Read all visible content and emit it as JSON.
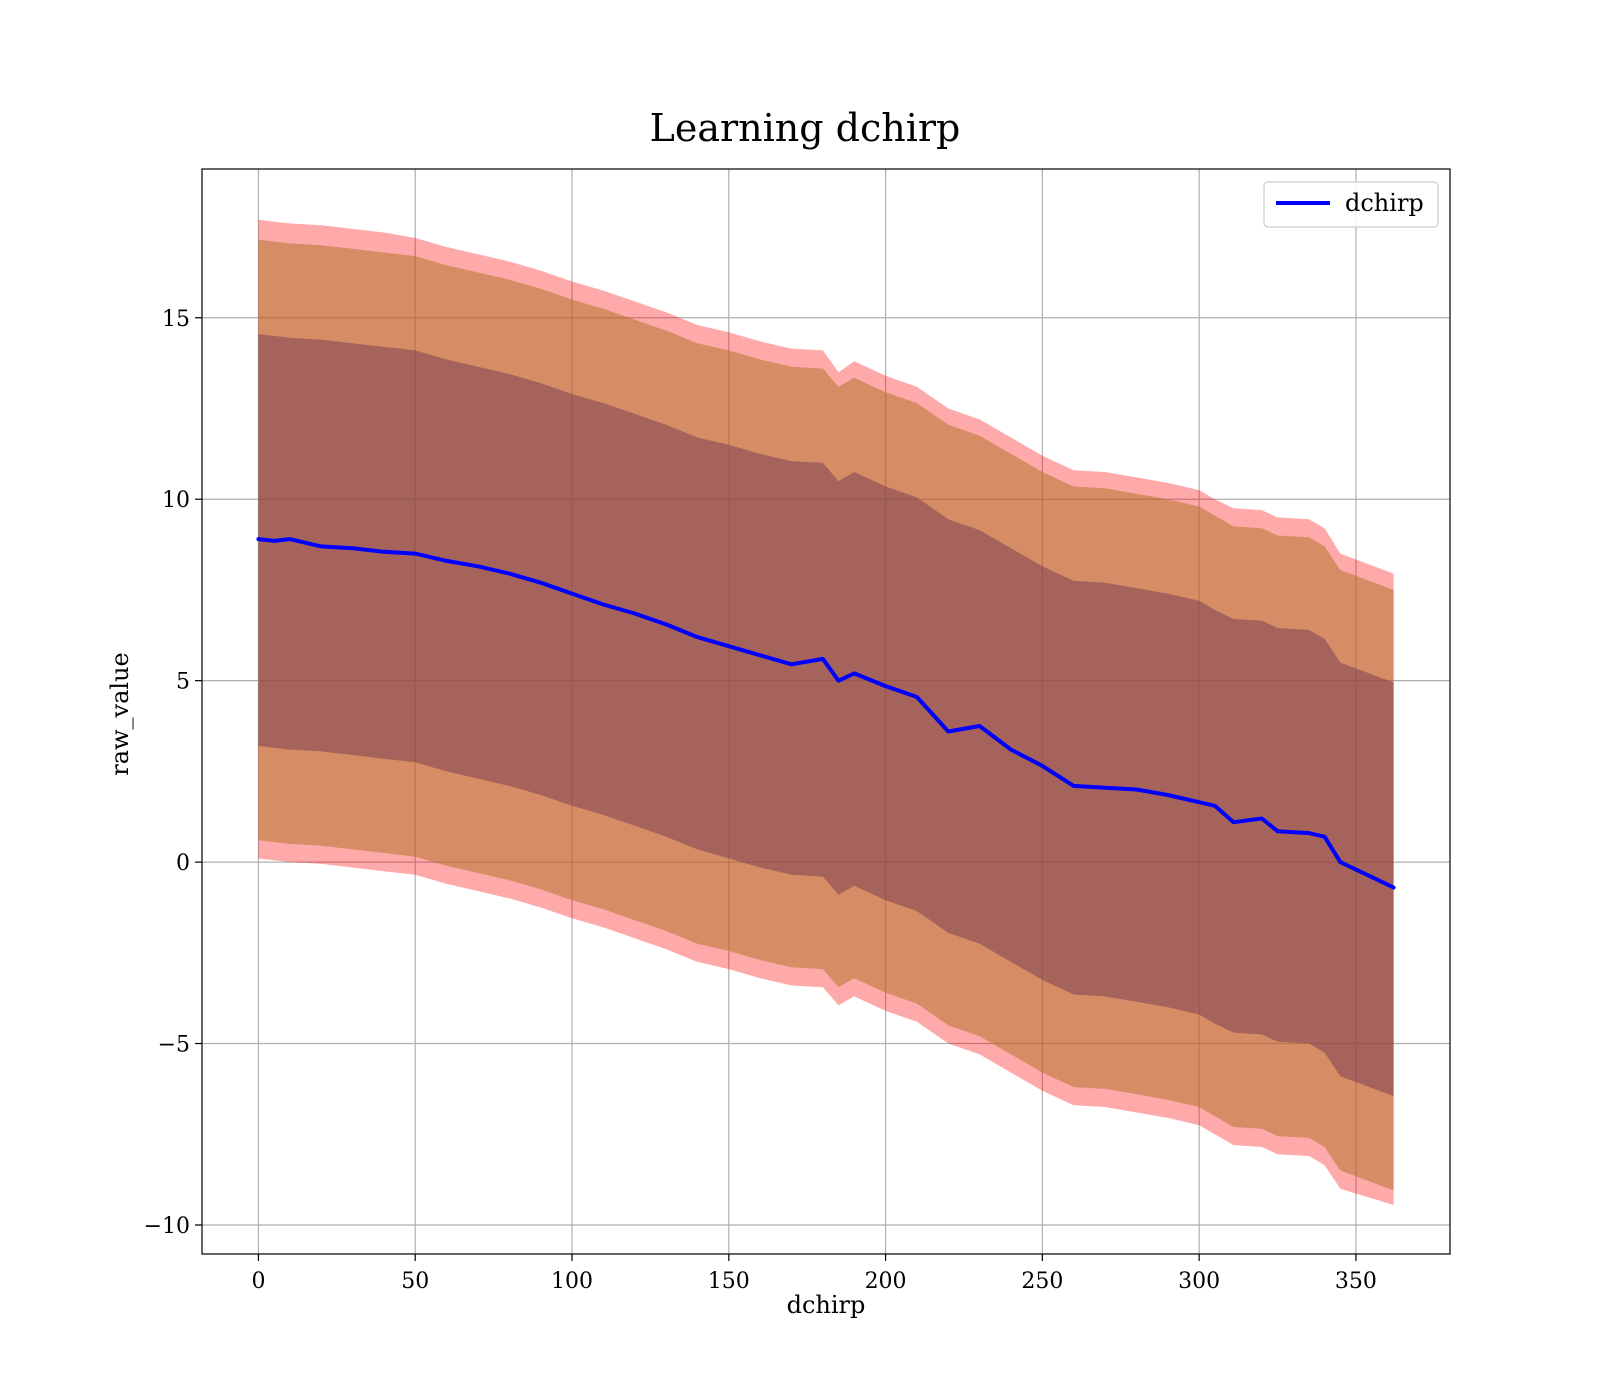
{
  "chart_data": {
    "type": "line",
    "title": "Learning dchirp",
    "xlabel": "dchirp",
    "ylabel": "raw_value",
    "xlim": [
      -18,
      380
    ],
    "ylim": [
      -10.8,
      19.1
    ],
    "xticks": [
      0,
      50,
      100,
      150,
      200,
      250,
      300,
      350
    ],
    "yticks": [
      -10,
      -5,
      0,
      5,
      10,
      15
    ],
    "xtick_labels": [
      "0",
      "50",
      "100",
      "150",
      "200",
      "250",
      "300",
      "350"
    ],
    "ytick_labels": [
      "−10",
      "−5",
      "0",
      "5",
      "10",
      "15"
    ],
    "grid": true,
    "legend_position": "top-right",
    "colors": {
      "line": "#0000ff",
      "outer_band": "#ff000055",
      "middle_band": "#b2742a88",
      "inner_band": "#7a3d5588"
    },
    "x": [
      0,
      5,
      10,
      20,
      30,
      40,
      50,
      60,
      70,
      80,
      90,
      100,
      110,
      120,
      130,
      140,
      150,
      160,
      170,
      180,
      185,
      190,
      200,
      210,
      220,
      230,
      240,
      250,
      260,
      270,
      280,
      290,
      300,
      305,
      311,
      320,
      325,
      335,
      340,
      345,
      362
    ],
    "series": [
      {
        "name": "dchirp",
        "values": [
          8.9,
          8.85,
          8.9,
          8.7,
          8.65,
          8.55,
          8.5,
          8.3,
          8.15,
          7.95,
          7.7,
          7.4,
          7.1,
          6.85,
          6.55,
          6.2,
          5.95,
          5.7,
          5.45,
          5.6,
          5.0,
          5.2,
          4.85,
          4.55,
          3.6,
          3.75,
          3.1,
          2.65,
          2.1,
          2.05,
          2.0,
          1.85,
          1.65,
          1.55,
          1.1,
          1.2,
          0.85,
          0.8,
          0.7,
          0.0,
          -0.7
        ]
      }
    ],
    "bands": {
      "outer_upper": [
        17.7,
        17.65,
        17.6,
        17.55,
        17.45,
        17.35,
        17.2,
        16.95,
        16.75,
        16.55,
        16.3,
        16.0,
        15.75,
        15.45,
        15.15,
        14.8,
        14.6,
        14.35,
        14.15,
        14.1,
        13.5,
        13.8,
        13.4,
        13.1,
        12.5,
        12.2,
        11.7,
        11.2,
        10.8,
        10.75,
        10.6,
        10.45,
        10.25,
        10.0,
        9.75,
        9.7,
        9.5,
        9.45,
        9.2,
        8.5,
        7.95
      ],
      "middle_upper": [
        17.15,
        17.1,
        17.05,
        17.0,
        16.9,
        16.8,
        16.7,
        16.45,
        16.25,
        16.05,
        15.8,
        15.5,
        15.25,
        14.95,
        14.65,
        14.3,
        14.1,
        13.85,
        13.65,
        13.6,
        13.1,
        13.35,
        12.95,
        12.65,
        12.05,
        11.75,
        11.25,
        10.75,
        10.35,
        10.3,
        10.15,
        10.0,
        9.8,
        9.55,
        9.25,
        9.2,
        9.0,
        8.95,
        8.7,
        8.05,
        7.5
      ],
      "inner_upper": [
        14.55,
        14.5,
        14.45,
        14.4,
        14.3,
        14.2,
        14.1,
        13.85,
        13.65,
        13.45,
        13.2,
        12.9,
        12.65,
        12.35,
        12.05,
        11.7,
        11.5,
        11.25,
        11.05,
        11.0,
        10.5,
        10.75,
        10.35,
        10.05,
        9.45,
        9.15,
        8.65,
        8.15,
        7.75,
        7.7,
        7.55,
        7.4,
        7.2,
        6.95,
        6.7,
        6.65,
        6.45,
        6.4,
        6.15,
        5.5,
        4.95
      ],
      "inner_lower": [
        3.2,
        3.15,
        3.1,
        3.05,
        2.95,
        2.85,
        2.75,
        2.5,
        2.3,
        2.1,
        1.85,
        1.55,
        1.3,
        1.0,
        0.7,
        0.35,
        0.1,
        -0.15,
        -0.35,
        -0.4,
        -0.9,
        -0.65,
        -1.05,
        -1.35,
        -1.95,
        -2.25,
        -2.75,
        -3.25,
        -3.65,
        -3.7,
        -3.85,
        -4.0,
        -4.2,
        -4.45,
        -4.7,
        -4.75,
        -4.95,
        -5.0,
        -5.25,
        -5.9,
        -6.45
      ],
      "middle_lower": [
        0.6,
        0.55,
        0.5,
        0.45,
        0.35,
        0.25,
        0.15,
        -0.1,
        -0.3,
        -0.5,
        -0.75,
        -1.05,
        -1.3,
        -1.6,
        -1.9,
        -2.25,
        -2.45,
        -2.7,
        -2.9,
        -2.95,
        -3.45,
        -3.2,
        -3.6,
        -3.9,
        -4.5,
        -4.8,
        -5.3,
        -5.8,
        -6.2,
        -6.25,
        -6.4,
        -6.55,
        -6.75,
        -7.0,
        -7.3,
        -7.35,
        -7.55,
        -7.6,
        -7.85,
        -8.5,
        -9.05
      ],
      "outer_lower": [
        0.1,
        0.05,
        0.0,
        -0.05,
        -0.15,
        -0.25,
        -0.35,
        -0.6,
        -0.8,
        -1.0,
        -1.25,
        -1.55,
        -1.8,
        -2.1,
        -2.4,
        -2.75,
        -2.95,
        -3.2,
        -3.4,
        -3.45,
        -3.95,
        -3.7,
        -4.1,
        -4.4,
        -5.0,
        -5.3,
        -5.8,
        -6.3,
        -6.7,
        -6.75,
        -6.9,
        -7.05,
        -7.25,
        -7.5,
        -7.8,
        -7.85,
        -8.05,
        -8.1,
        -8.35,
        -9.0,
        -9.45
      ]
    }
  }
}
